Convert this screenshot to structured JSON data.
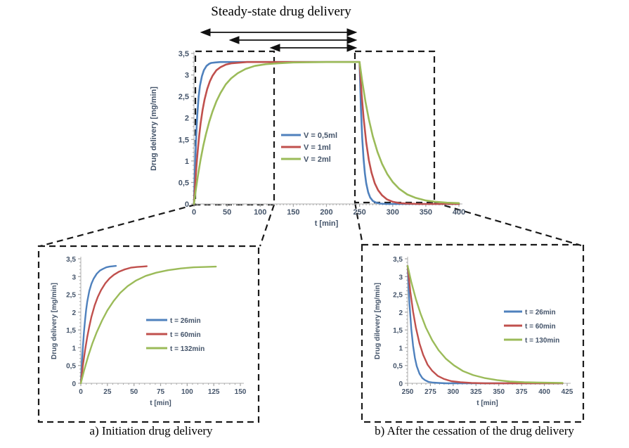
{
  "figure": {
    "title": "Steady-state drug delivery",
    "caption_a": "a) Initiation drug delivery",
    "caption_b": "b) After the cessation of the drug delivery"
  },
  "colors": {
    "blue": "#4F81BD",
    "red": "#C0504D",
    "green": "#9BBB59",
    "axis_line": "#BFBFBF",
    "tick_mark": "#A6A6A6",
    "tick_text": "#44546A",
    "dashed": "#1A1A1A"
  },
  "chart_data": [
    {
      "id": "main",
      "type": "line",
      "title": "",
      "xlabel": "t [min]",
      "ylabel": "Drug delivery [mg/min]",
      "xlim": [
        0,
        400
      ],
      "ylim": [
        0,
        3.5
      ],
      "grid": false,
      "legend_position": "center",
      "x_minor_step": 5,
      "y_minor_step": 0.1,
      "xticks": {
        "values": [
          0,
          50,
          100,
          150,
          200,
          250,
          300,
          350,
          400
        ],
        "labels": [
          "0",
          "50",
          "100",
          "150",
          "200",
          "250",
          "300",
          "350",
          "400"
        ]
      },
      "yticks": {
        "values": [
          0,
          0.5,
          1,
          1.5,
          2,
          2.5,
          3,
          3.5
        ],
        "labels": [
          "0",
          "0,5",
          "1",
          "1,5",
          "2",
          "2,5",
          "3",
          "3,5"
        ]
      },
      "series": [
        {
          "name": "V = 0,5ml",
          "color_key": "blue",
          "points": [
            [
              0,
              0
            ],
            [
              1,
              0.57
            ],
            [
              2,
              1.04
            ],
            [
              3,
              1.45
            ],
            [
              4,
              1.79
            ],
            [
              5,
              2.07
            ],
            [
              7,
              2.49
            ],
            [
              9,
              2.75
            ],
            [
              12,
              2.97
            ],
            [
              15,
              3.11
            ],
            [
              19,
              3.21
            ],
            [
              23,
              3.26
            ],
            [
              26,
              3.28
            ],
            [
              32,
              3.29
            ],
            [
              40,
              3.3
            ],
            [
              60,
              3.3
            ],
            [
              100,
              3.3
            ],
            [
              160,
              3.3
            ],
            [
              220,
              3.3
            ],
            [
              250,
              3.3
            ],
            [
              252,
              2.25
            ],
            [
              254,
              1.53
            ],
            [
              256,
              1.05
            ],
            [
              258,
              0.71
            ],
            [
              260,
              0.48
            ],
            [
              263,
              0.27
            ],
            [
              266,
              0.15
            ],
            [
              270,
              0.07
            ],
            [
              275,
              0.03
            ],
            [
              281,
              0.01
            ],
            [
              290,
              0
            ],
            [
              320,
              0
            ],
            [
              360,
              0
            ],
            [
              400,
              0
            ]
          ]
        },
        {
          "name": "V = 1ml",
          "color_key": "red",
          "points": [
            [
              0,
              0
            ],
            [
              2,
              0.51
            ],
            [
              4,
              0.94
            ],
            [
              6,
              1.3
            ],
            [
              8,
              1.6
            ],
            [
              10,
              1.87
            ],
            [
              13,
              2.19
            ],
            [
              16,
              2.43
            ],
            [
              20,
              2.67
            ],
            [
              24,
              2.85
            ],
            [
              28,
              2.98
            ],
            [
              34,
              3.11
            ],
            [
              40,
              3.18
            ],
            [
              48,
              3.24
            ],
            [
              56,
              3.27
            ],
            [
              64,
              3.28
            ],
            [
              80,
              3.3
            ],
            [
              120,
              3.3
            ],
            [
              180,
              3.3
            ],
            [
              250,
              3.3
            ],
            [
              253,
              2.57
            ],
            [
              256,
              2.01
            ],
            [
              260,
              1.43
            ],
            [
              264,
              1.02
            ],
            [
              268,
              0.73
            ],
            [
              273,
              0.48
            ],
            [
              278,
              0.32
            ],
            [
              284,
              0.2
            ],
            [
              291,
              0.11
            ],
            [
              300,
              0.05
            ],
            [
              310,
              0.02
            ],
            [
              322,
              0.01
            ],
            [
              340,
              0
            ],
            [
              400,
              0
            ]
          ]
        },
        {
          "name": "V = 2ml",
          "color_key": "green",
          "points": [
            [
              0,
              0
            ],
            [
              3,
              0.35
            ],
            [
              6,
              0.67
            ],
            [
              10,
              1.03
            ],
            [
              14,
              1.35
            ],
            [
              18,
              1.62
            ],
            [
              23,
              1.91
            ],
            [
              28,
              2.15
            ],
            [
              34,
              2.39
            ],
            [
              40,
              2.58
            ],
            [
              48,
              2.78
            ],
            [
              56,
              2.92
            ],
            [
              66,
              3.04
            ],
            [
              78,
              3.14
            ],
            [
              92,
              3.21
            ],
            [
              108,
              3.25
            ],
            [
              126,
              3.27
            ],
            [
              150,
              3.29
            ],
            [
              200,
              3.3
            ],
            [
              250,
              3.3
            ],
            [
              254,
              2.85
            ],
            [
              259,
              2.37
            ],
            [
              264,
              1.97
            ],
            [
              270,
              1.57
            ],
            [
              277,
              1.21
            ],
            [
              284,
              0.93
            ],
            [
              292,
              0.69
            ],
            [
              300,
              0.51
            ],
            [
              310,
              0.35
            ],
            [
              322,
              0.22
            ],
            [
              335,
              0.14
            ],
            [
              350,
              0.08
            ],
            [
              365,
              0.05
            ],
            [
              382,
              0.03
            ],
            [
              400,
              0.02
            ]
          ]
        }
      ]
    },
    {
      "id": "initiation",
      "type": "line",
      "title": "",
      "xlabel": "t [min]",
      "ylabel": "Drug delivery [mg/min]",
      "xlim": [
        0,
        150
      ],
      "ylim": [
        0,
        3.5
      ],
      "grid": false,
      "legend_position": "center-right",
      "x_minor_step": 5,
      "y_minor_step": 0.1,
      "xticks": {
        "values": [
          0,
          25,
          50,
          75,
          100,
          125,
          150
        ],
        "labels": [
          "0",
          "25",
          "50",
          "75",
          "100",
          "125",
          "150"
        ]
      },
      "yticks": {
        "values": [
          0,
          0.5,
          1,
          1.5,
          2,
          2.5,
          3,
          3.5
        ],
        "labels": [
          "0",
          "0,5",
          "1",
          "1,5",
          "2",
          "2,5",
          "3",
          "3,5"
        ]
      },
      "series": [
        {
          "name": "t = 26min",
          "color_key": "blue",
          "points": [
            [
              0,
              0
            ],
            [
              1,
              0.57
            ],
            [
              2,
              1.04
            ],
            [
              3,
              1.45
            ],
            [
              4,
              1.79
            ],
            [
              5,
              2.07
            ],
            [
              6,
              2.29
            ],
            [
              8,
              2.6
            ],
            [
              10,
              2.8
            ],
            [
              12,
              2.94
            ],
            [
              15,
              3.08
            ],
            [
              18,
              3.17
            ],
            [
              21,
              3.22
            ],
            [
              24,
              3.26
            ],
            [
              27,
              3.28
            ],
            [
              30,
              3.29
            ],
            [
              33,
              3.3
            ]
          ]
        },
        {
          "name": "t = 60min",
          "color_key": "red",
          "points": [
            [
              0,
              0
            ],
            [
              2,
              0.51
            ],
            [
              4,
              0.94
            ],
            [
              6,
              1.3
            ],
            [
              8,
              1.6
            ],
            [
              10,
              1.87
            ],
            [
              13,
              2.19
            ],
            [
              16,
              2.43
            ],
            [
              19,
              2.62
            ],
            [
              23,
              2.81
            ],
            [
              27,
              2.95
            ],
            [
              31,
              3.05
            ],
            [
              36,
              3.14
            ],
            [
              41,
              3.2
            ],
            [
              47,
              3.25
            ],
            [
              53,
              3.27
            ],
            [
              58,
              3.28
            ],
            [
              62,
              3.29
            ]
          ]
        },
        {
          "name": "t = 132min",
          "color_key": "green",
          "points": [
            [
              0,
              0
            ],
            [
              3,
              0.35
            ],
            [
              7,
              0.77
            ],
            [
              11,
              1.13
            ],
            [
              15,
              1.44
            ],
            [
              20,
              1.77
            ],
            [
              25,
              2.05
            ],
            [
              31,
              2.32
            ],
            [
              37,
              2.54
            ],
            [
              44,
              2.73
            ],
            [
              52,
              2.89
            ],
            [
              61,
              3.02
            ],
            [
              71,
              3.11
            ],
            [
              82,
              3.18
            ],
            [
              94,
              3.23
            ],
            [
              106,
              3.26
            ],
            [
              117,
              3.27
            ],
            [
              127,
              3.28
            ]
          ]
        }
      ]
    },
    {
      "id": "cessation",
      "type": "line",
      "title": "",
      "xlabel": "t [min]",
      "ylabel": "Drug dilevery [mg/min]",
      "xlim": [
        250,
        425
      ],
      "ylim": [
        0,
        3.5
      ],
      "grid": false,
      "legend_position": "center-right",
      "x_minor_step": 5,
      "y_minor_step": 0.1,
      "xticks": {
        "values": [
          250,
          275,
          300,
          325,
          350,
          375,
          400,
          425
        ],
        "labels": [
          "250",
          "275",
          "300",
          "325",
          "350",
          "375",
          "400",
          "425"
        ]
      },
      "yticks": {
        "values": [
          0,
          0.5,
          1,
          1.5,
          2,
          2.5,
          3,
          3.5
        ],
        "labels": [
          "0",
          "0,5",
          "1",
          "1,5",
          "2",
          "2,5",
          "3",
          "3,5"
        ]
      },
      "series": [
        {
          "name": "t = 26min",
          "color_key": "blue",
          "points": [
            [
              250,
              3.3
            ],
            [
              252,
              2.25
            ],
            [
              254,
              1.53
            ],
            [
              256,
              1.05
            ],
            [
              258,
              0.71
            ],
            [
              260,
              0.48
            ],
            [
              263,
              0.27
            ],
            [
              266,
              0.15
            ],
            [
              269,
              0.09
            ],
            [
              273,
              0.04
            ],
            [
              278,
              0.02
            ],
            [
              284,
              0.01
            ],
            [
              292,
              0
            ],
            [
              310,
              0
            ],
            [
              340,
              0
            ],
            [
              380,
              0
            ],
            [
              420,
              0
            ]
          ]
        },
        {
          "name": "t = 60min",
          "color_key": "red",
          "points": [
            [
              250,
              3.3
            ],
            [
              253,
              2.57
            ],
            [
              256,
              2.01
            ],
            [
              259,
              1.57
            ],
            [
              263,
              1.12
            ],
            [
              267,
              0.8
            ],
            [
              272,
              0.52
            ],
            [
              277,
              0.35
            ],
            [
              283,
              0.21
            ],
            [
              290,
              0.12
            ],
            [
              298,
              0.06
            ],
            [
              308,
              0.03
            ],
            [
              320,
              0.01
            ],
            [
              335,
              0
            ],
            [
              370,
              0
            ],
            [
              420,
              0
            ]
          ]
        },
        {
          "name": "t = 130min",
          "color_key": "green",
          "points": [
            [
              250,
              3.3
            ],
            [
              254,
              2.85
            ],
            [
              259,
              2.37
            ],
            [
              264,
              1.97
            ],
            [
              270,
              1.57
            ],
            [
              277,
              1.21
            ],
            [
              284,
              0.93
            ],
            [
              292,
              0.69
            ],
            [
              301,
              0.5
            ],
            [
              311,
              0.34
            ],
            [
              322,
              0.23
            ],
            [
              334,
              0.15
            ],
            [
              348,
              0.09
            ],
            [
              362,
              0.05
            ],
            [
              378,
              0.03
            ],
            [
              396,
              0.02
            ],
            [
              420,
              0.01
            ]
          ]
        }
      ]
    }
  ]
}
